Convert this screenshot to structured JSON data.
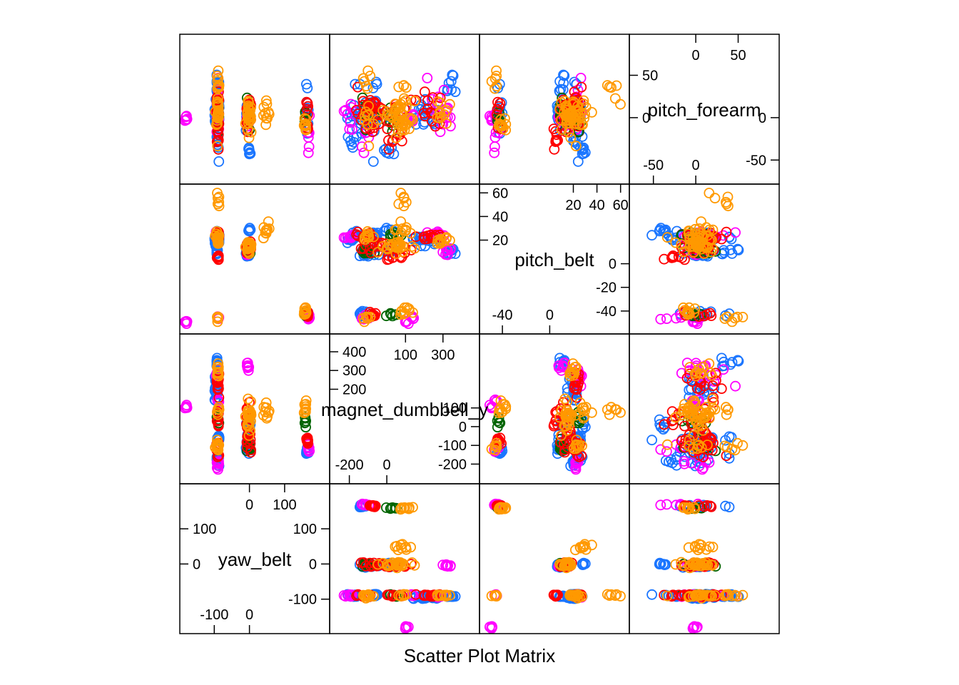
{
  "chart_data": {
    "type": "scatter",
    "subtype": "scatter-matrix",
    "xlabel": "Scatter Plot Matrix",
    "variables": [
      {
        "name": "yaw_belt",
        "lim": [
          -190,
          220
        ],
        "ticks": [
          -100,
          0,
          100
        ]
      },
      {
        "name": "magnet_dumbbell_y",
        "lim": [
          -290,
          480
        ],
        "ticks": [
          -200,
          0,
          100,
          200,
          300,
          400
        ]
      },
      {
        "name": "pitch_belt",
        "lim": [
          -57,
          65
        ],
        "ticks": [
          -40,
          -20,
          0,
          20,
          40,
          60
        ]
      },
      {
        "name": "pitch_forearm",
        "lim": [
          -75,
          95
        ],
        "ticks": [
          -50,
          0,
          50
        ]
      }
    ],
    "diagonal_ticks": [
      {
        "low_bottom": [
          "-100",
          "0"
        ],
        "low_side": [
          "-100",
          "0",
          "100"
        ],
        "high_top": [
          "0",
          "100"
        ],
        "high_side": [
          "0",
          "100"
        ]
      },
      {
        "low_bottom": [
          "-200",
          "0"
        ],
        "low_side": [
          "-200",
          "-100",
          "0",
          "100"
        ],
        "high_top": [
          "100",
          "300"
        ],
        "high_side": [
          "200",
          "300",
          "400"
        ]
      },
      {
        "low_bottom": [
          "-40",
          "0"
        ],
        "low_side": [
          "-40",
          "-20",
          "0"
        ],
        "high_top": [
          "20",
          "40",
          "60"
        ],
        "high_side": [
          "20",
          "40",
          "60"
        ]
      },
      {
        "low_bottom": [
          "-50",
          "0"
        ],
        "low_side": [
          "-50",
          "0"
        ],
        "high_top": [
          "0",
          "50"
        ],
        "high_side": [
          "50",
          "0"
        ]
      }
    ],
    "groups": [
      {
        "color": "#1a75ff"
      },
      {
        "color": "#ff00ff"
      },
      {
        "color": "#006400"
      },
      {
        "color": "#ff0000"
      },
      {
        "color": "#ff9900"
      }
    ],
    "clusters": [
      {
        "group": 0,
        "n": 22,
        "c": [
          -95,
          200,
          20,
          5
        ],
        "s": [
          5,
          60,
          5,
          22
        ]
      },
      {
        "group": 0,
        "n": 16,
        "c": [
          -90,
          -180,
          22,
          -5
        ],
        "s": [
          4,
          25,
          4,
          35
        ]
      },
      {
        "group": 0,
        "n": 14,
        "c": [
          -88,
          -60,
          24,
          0
        ],
        "s": [
          5,
          20,
          5,
          40
        ]
      },
      {
        "group": 0,
        "n": 12,
        "c": [
          -5,
          -100,
          8,
          0
        ],
        "s": [
          5,
          40,
          4,
          22
        ]
      },
      {
        "group": 0,
        "n": 8,
        "c": [
          -3,
          20,
          12,
          2
        ],
        "s": [
          5,
          30,
          3,
          10
        ]
      },
      {
        "group": 0,
        "n": 10,
        "c": [
          165,
          -120,
          -43,
          10
        ],
        "s": [
          5,
          40,
          3,
          30
        ]
      },
      {
        "group": 0,
        "n": 8,
        "c": [
          -92,
          340,
          10,
          40
        ],
        "s": [
          3,
          20,
          3,
          15
        ]
      },
      {
        "group": 0,
        "n": 6,
        "c": [
          0,
          20,
          28,
          -45
        ],
        "s": [
          4,
          40,
          4,
          10
        ]
      },
      {
        "group": 1,
        "n": 10,
        "c": [
          -92,
          260,
          24,
          10
        ],
        "s": [
          4,
          80,
          3,
          30
        ]
      },
      {
        "group": 1,
        "n": 5,
        "c": [
          -180,
          100,
          -50,
          -2
        ],
        "s": [
          4,
          20,
          2,
          4
        ]
      },
      {
        "group": 1,
        "n": 8,
        "c": [
          -4,
          320,
          10,
          0
        ],
        "s": [
          4,
          40,
          3,
          18
        ]
      },
      {
        "group": 1,
        "n": 8,
        "c": [
          -90,
          -200,
          22,
          5
        ],
        "s": [
          4,
          30,
          3,
          20
        ]
      },
      {
        "group": 1,
        "n": 6,
        "c": [
          168,
          -100,
          -45,
          -20
        ],
        "s": [
          4,
          40,
          3,
          25
        ]
      },
      {
        "group": 1,
        "n": 4,
        "c": [
          -90,
          140,
          -45,
          0
        ],
        "s": [
          3,
          20,
          3,
          5
        ]
      },
      {
        "group": 2,
        "n": 10,
        "c": [
          -3,
          -100,
          10,
          5
        ],
        "s": [
          4,
          30,
          4,
          15
        ]
      },
      {
        "group": 2,
        "n": 8,
        "c": [
          -90,
          40,
          24,
          0
        ],
        "s": [
          4,
          50,
          3,
          20
        ]
      },
      {
        "group": 2,
        "n": 6,
        "c": [
          160,
          30,
          -43,
          0
        ],
        "s": [
          3,
          30,
          2,
          15
        ]
      },
      {
        "group": 3,
        "n": 22,
        "c": [
          -2,
          0,
          14,
          5
        ],
        "s": [
          6,
          120,
          5,
          20
        ]
      },
      {
        "group": 3,
        "n": 14,
        "c": [
          -90,
          250,
          22,
          10
        ],
        "s": [
          4,
          80,
          4,
          25
        ]
      },
      {
        "group": 3,
        "n": 10,
        "c": [
          -90,
          -120,
          24,
          10
        ],
        "s": [
          4,
          40,
          4,
          20
        ]
      },
      {
        "group": 3,
        "n": 8,
        "c": [
          165,
          -70,
          -43,
          0
        ],
        "s": [
          3,
          30,
          3,
          20
        ]
      },
      {
        "group": 3,
        "n": 8,
        "c": [
          -90,
          60,
          5,
          -25
        ],
        "s": [
          4,
          50,
          3,
          10
        ]
      },
      {
        "group": 4,
        "n": 26,
        "c": [
          -2,
          50,
          14,
          5
        ],
        "s": [
          8,
          90,
          5,
          18
        ]
      },
      {
        "group": 4,
        "n": 12,
        "c": [
          -90,
          300,
          20,
          5
        ],
        "s": [
          4,
          60,
          4,
          15
        ]
      },
      {
        "group": 4,
        "n": 10,
        "c": [
          -92,
          -90,
          24,
          -10
        ],
        "s": [
          5,
          60,
          4,
          20
        ]
      },
      {
        "group": 4,
        "n": 10,
        "c": [
          50,
          90,
          30,
          5
        ],
        "s": [
          8,
          40,
          6,
          15
        ]
      },
      {
        "group": 4,
        "n": 10,
        "c": [
          160,
          100,
          -40,
          -5
        ],
        "s": [
          6,
          40,
          3,
          10
        ]
      },
      {
        "group": 4,
        "n": 6,
        "c": [
          -88,
          80,
          55,
          30
        ],
        "s": [
          4,
          40,
          6,
          25
        ]
      },
      {
        "group": 4,
        "n": 6,
        "c": [
          -90,
          -110,
          -45,
          45
        ],
        "s": [
          3,
          30,
          3,
          20
        ]
      }
    ]
  }
}
